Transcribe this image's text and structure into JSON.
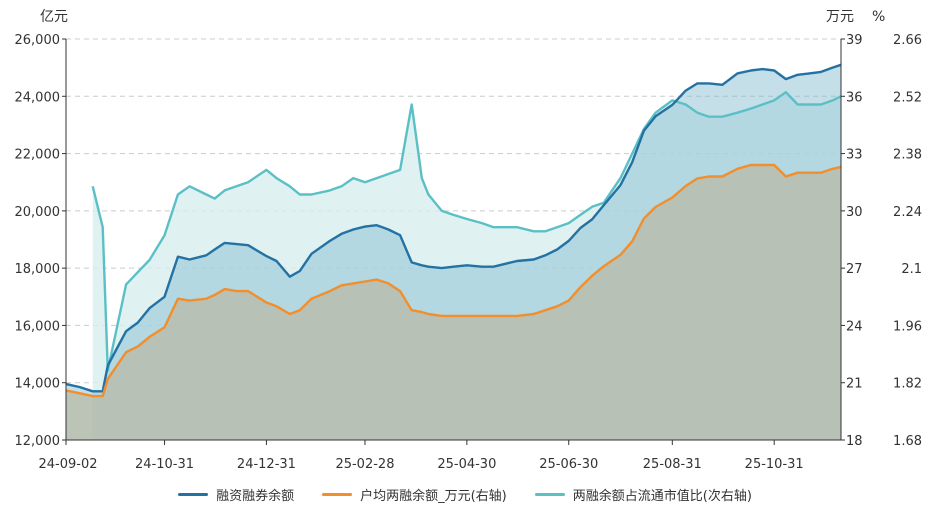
{
  "chart_data": {
    "type": "line",
    "units": {
      "left": "亿元",
      "right1": "万元",
      "right2": "%"
    },
    "x_ticks": [
      "24-09-02",
      "24-10-31",
      "24-12-31",
      "25-02-28",
      "25-04-30",
      "25-06-30",
      "25-08-31",
      "25-10-31"
    ],
    "y_left": {
      "range": [
        12000,
        26000
      ],
      "ticks": [
        "12,000",
        "14,000",
        "16,000",
        "18,000",
        "20,000",
        "22,000",
        "24,000",
        "26,000"
      ]
    },
    "y_right1": {
      "range": [
        18,
        39
      ],
      "ticks": [
        "18",
        "21",
        "24",
        "27",
        "30",
        "33",
        "36",
        "39"
      ]
    },
    "y_right2": {
      "range": [
        1.68,
        2.66
      ],
      "ticks": [
        "1.68",
        "1.82",
        "1.96",
        "2.1",
        "2.24",
        "2.38",
        "2.52",
        "2.66"
      ]
    },
    "grid": true,
    "legend_position": "bottom",
    "colors": {
      "margin_balance": "#2471a3",
      "per_account": "#f28e2b",
      "ratio": "#5bc0c6"
    },
    "series": [
      {
        "key": "margin_balance",
        "name": "融资融券余额",
        "axis": "left",
        "x": [
          "24-09-02",
          "24-09-10",
          "24-09-18",
          "24-09-24",
          "24-09-27",
          "24-10-08",
          "24-10-15",
          "24-10-22",
          "24-10-31",
          "24-11-08",
          "24-11-15",
          "24-11-25",
          "24-11-30",
          "24-12-06",
          "24-12-13",
          "24-12-20",
          "24-12-31",
          "25-01-06",
          "25-01-14",
          "25-01-20",
          "25-01-27",
          "25-02-07",
          "25-02-14",
          "25-02-21",
          "25-02-28",
          "25-03-07",
          "25-03-14",
          "25-03-21",
          "25-03-28",
          "25-04-03",
          "25-04-07",
          "25-04-15",
          "25-04-22",
          "25-04-30",
          "25-05-09",
          "25-05-16",
          "25-05-23",
          "25-05-30",
          "25-06-09",
          "25-06-16",
          "25-06-23",
          "25-06-30",
          "25-07-07",
          "25-07-14",
          "25-07-21",
          "25-07-31",
          "25-08-07",
          "25-08-14",
          "25-08-21",
          "25-08-31",
          "25-09-08",
          "25-09-15",
          "25-09-22",
          "25-09-30",
          "25-10-09",
          "25-10-17",
          "25-10-24",
          "25-10-31",
          "25-11-07",
          "25-11-14",
          "25-11-21",
          "25-11-28",
          "25-12-05",
          "25-12-10"
        ],
        "values": [
          13950,
          13850,
          13700,
          13700,
          14600,
          15800,
          16100,
          16600,
          17000,
          18400,
          18300,
          18450,
          18650,
          18880,
          18840,
          18800,
          18420,
          18250,
          17700,
          17900,
          18500,
          18950,
          19200,
          19350,
          19450,
          19500,
          19350,
          19150,
          18200,
          18100,
          18050,
          18000,
          18050,
          18100,
          18050,
          18050,
          18150,
          18250,
          18300,
          18450,
          18650,
          18950,
          19400,
          19700,
          20200,
          20900,
          21700,
          22800,
          23300,
          23700,
          24200,
          24450,
          24450,
          24400,
          24800,
          24900,
          24950,
          24900,
          24600,
          24750,
          24800,
          24850,
          25000,
          25100
        ]
      },
      {
        "key": "per_account",
        "name": "户均两融余额_万元(右轴)",
        "axis": "right1",
        "x": [
          "24-09-02",
          "24-09-10",
          "24-09-18",
          "24-09-24",
          "24-09-27",
          "24-10-08",
          "24-10-15",
          "24-10-22",
          "24-10-31",
          "24-11-08",
          "24-11-15",
          "24-11-25",
          "24-11-30",
          "24-12-06",
          "24-12-13",
          "24-12-20",
          "24-12-31",
          "25-01-06",
          "25-01-14",
          "25-01-20",
          "25-01-27",
          "25-02-07",
          "25-02-14",
          "25-02-21",
          "25-02-28",
          "25-03-07",
          "25-03-14",
          "25-03-21",
          "25-03-28",
          "25-04-03",
          "25-04-07",
          "25-04-15",
          "25-04-22",
          "25-04-30",
          "25-05-09",
          "25-05-16",
          "25-05-23",
          "25-05-30",
          "25-06-09",
          "25-06-16",
          "25-06-23",
          "25-06-30",
          "25-07-07",
          "25-07-14",
          "25-07-21",
          "25-07-31",
          "25-08-07",
          "25-08-14",
          "25-08-21",
          "25-08-31",
          "25-09-08",
          "25-09-15",
          "25-09-22",
          "25-09-30",
          "25-10-09",
          "25-10-17",
          "25-10-24",
          "25-10-31",
          "25-11-07",
          "25-11-14",
          "25-11-21",
          "25-11-28",
          "25-12-05",
          "25-12-10"
        ],
        "values": [
          20.6,
          20.45,
          20.3,
          20.3,
          21.2,
          22.6,
          22.9,
          23.4,
          23.9,
          25.4,
          25.3,
          25.4,
          25.6,
          25.9,
          25.8,
          25.8,
          25.2,
          25.0,
          24.6,
          24.8,
          25.4,
          25.8,
          26.1,
          26.2,
          26.3,
          26.4,
          26.2,
          25.8,
          24.8,
          24.7,
          24.6,
          24.5,
          24.5,
          24.5,
          24.5,
          24.5,
          24.5,
          24.5,
          24.6,
          24.8,
          25.0,
          25.3,
          26.0,
          26.6,
          27.1,
          27.7,
          28.4,
          29.6,
          30.2,
          30.7,
          31.3,
          31.7,
          31.8,
          31.8,
          32.2,
          32.4,
          32.4,
          32.4,
          31.8,
          32.0,
          32.0,
          32.0,
          32.2,
          32.3
        ]
      },
      {
        "key": "ratio",
        "name": "两融余额占流通市值比(次右轴)",
        "axis": "right2",
        "x": [
          "24-09-02",
          "24-09-10",
          "24-09-18",
          "24-09-24",
          "24-09-27",
          "24-10-08",
          "24-10-15",
          "24-10-22",
          "24-10-31",
          "24-11-08",
          "24-11-15",
          "24-11-25",
          "24-11-30",
          "24-12-06",
          "24-12-13",
          "24-12-20",
          "24-12-31",
          "25-01-06",
          "25-01-14",
          "25-01-20",
          "25-01-27",
          "25-02-07",
          "25-02-14",
          "25-02-21",
          "25-02-28",
          "25-03-07",
          "25-03-14",
          "25-03-21",
          "25-03-28",
          "25-04-03",
          "25-04-07",
          "25-04-15",
          "25-04-22",
          "25-04-30",
          "25-05-09",
          "25-05-16",
          "25-05-23",
          "25-05-30",
          "25-06-09",
          "25-06-16",
          "25-06-23",
          "25-06-30",
          "25-07-07",
          "25-07-14",
          "25-07-21",
          "25-07-31",
          "25-08-07",
          "25-08-14",
          "25-08-21",
          "25-08-31",
          "25-09-08",
          "25-09-15",
          "25-09-22",
          "25-09-30",
          "25-10-09",
          "25-10-17",
          "25-10-24",
          "25-10-31",
          "25-11-07",
          "25-11-14",
          "25-11-21",
          "25-11-28",
          "25-12-05",
          "25-12-10"
        ],
        "values": [
          null,
          null,
          2.3,
          2.2,
          1.85,
          2.06,
          2.09,
          2.12,
          2.18,
          2.28,
          2.3,
          2.28,
          2.27,
          2.29,
          2.3,
          2.31,
          2.34,
          2.32,
          2.3,
          2.28,
          2.28,
          2.29,
          2.3,
          2.32,
          2.31,
          2.32,
          2.33,
          2.34,
          2.5,
          2.32,
          2.28,
          2.24,
          2.23,
          2.22,
          2.21,
          2.2,
          2.2,
          2.2,
          2.19,
          2.19,
          2.2,
          2.21,
          2.23,
          2.25,
          2.26,
          2.32,
          2.38,
          2.44,
          2.48,
          2.51,
          2.5,
          2.48,
          2.47,
          2.47,
          2.48,
          2.49,
          2.5,
          2.51,
          2.53,
          2.5,
          2.5,
          2.5,
          2.51,
          2.52
        ]
      }
    ]
  }
}
